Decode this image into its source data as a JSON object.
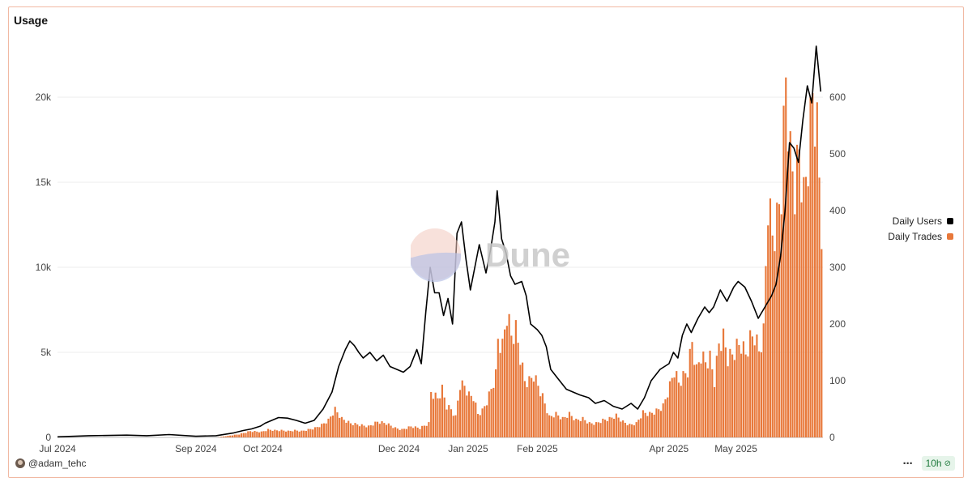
{
  "card": {
    "title": "Usage",
    "author": "@adam_tehc",
    "refresh_label": "10h",
    "more_icon": "more-dots-icon",
    "status_icon": "check-circle-icon"
  },
  "watermark": {
    "text": "Dune"
  },
  "legend": [
    {
      "label": "Daily Users",
      "color": "#000000"
    },
    {
      "label": "Daily Trades",
      "color": "#e8783a"
    }
  ],
  "chart_data": {
    "type": "bar+line",
    "x_ticks": [
      "Jul 2024",
      "Sep 2024",
      "Oct 2024",
      "Dec 2024",
      "Jan 2025",
      "Feb 2025",
      "Apr 2025",
      "May 2025"
    ],
    "x_tick_dates": [
      "2024-07-01",
      "2024-09-01",
      "2024-10-01",
      "2024-12-01",
      "2025-01-01",
      "2025-02-01",
      "2025-04-01",
      "2025-05-01"
    ],
    "x_range": [
      "2024-07-01",
      "2025-06-09"
    ],
    "y_left": {
      "ticks": [
        0,
        5000,
        10000,
        15000,
        20000
      ],
      "tick_labels": [
        "0",
        "5k",
        "10k",
        "15k",
        "20k"
      ],
      "range": [
        0,
        23000
      ],
      "series": "Daily Trades"
    },
    "y_right": {
      "ticks": [
        0,
        100,
        200,
        300,
        400,
        500,
        600
      ],
      "tick_labels": [
        "0",
        "100",
        "200",
        "300",
        "400",
        "500",
        "600"
      ],
      "range": [
        0,
        690
      ],
      "series": "Daily Users"
    },
    "grid": true,
    "legend_position": "right",
    "series": [
      {
        "name": "Daily Trades",
        "kind": "bar",
        "axis": "left",
        "color": "#e8783a",
        "points": [
          [
            "2024-07-01",
            0
          ],
          [
            "2024-08-01",
            0
          ],
          [
            "2024-09-01",
            0
          ],
          [
            "2024-09-10",
            0
          ],
          [
            "2024-09-15",
            100
          ],
          [
            "2024-09-20",
            200
          ],
          [
            "2024-09-25",
            400
          ],
          [
            "2024-09-30",
            350
          ],
          [
            "2024-10-03",
            500
          ],
          [
            "2024-10-06",
            450
          ],
          [
            "2024-10-09",
            450
          ],
          [
            "2024-10-12",
            400
          ],
          [
            "2024-10-15",
            450
          ],
          [
            "2024-10-18",
            400
          ],
          [
            "2024-10-21",
            500
          ],
          [
            "2024-10-24",
            600
          ],
          [
            "2024-10-27",
            800
          ],
          [
            "2024-10-30",
            1100
          ],
          [
            "2024-11-02",
            1800
          ],
          [
            "2024-11-05",
            1200
          ],
          [
            "2024-11-09",
            900
          ],
          [
            "2024-11-13",
            800
          ],
          [
            "2024-11-17",
            700
          ],
          [
            "2024-11-21",
            1000
          ],
          [
            "2024-11-25",
            900
          ],
          [
            "2024-11-29",
            600
          ],
          [
            "2024-12-02",
            500
          ],
          [
            "2024-12-06",
            700
          ],
          [
            "2024-12-10",
            600
          ],
          [
            "2024-12-14",
            900
          ],
          [
            "2024-12-15",
            2900
          ],
          [
            "2024-12-18",
            2500
          ],
          [
            "2024-12-20",
            3100
          ],
          [
            "2024-12-22",
            2000
          ],
          [
            "2024-12-24",
            1800
          ],
          [
            "2024-12-26",
            1300
          ],
          [
            "2024-12-28",
            3400
          ],
          [
            "2024-12-30",
            3300
          ],
          [
            "2025-01-01",
            2700
          ],
          [
            "2025-01-03",
            2600
          ],
          [
            "2025-01-05",
            1500
          ],
          [
            "2025-01-07",
            1700
          ],
          [
            "2025-01-09",
            2300
          ],
          [
            "2025-01-11",
            3100
          ],
          [
            "2025-01-13",
            4000
          ],
          [
            "2025-01-14",
            6300
          ],
          [
            "2025-01-16",
            5800
          ],
          [
            "2025-01-18",
            8000
          ],
          [
            "2025-01-20",
            6500
          ],
          [
            "2025-01-22",
            6900
          ],
          [
            "2025-01-24",
            5200
          ],
          [
            "2025-01-26",
            3600
          ],
          [
            "2025-01-28",
            3600
          ],
          [
            "2025-01-30",
            4000
          ],
          [
            "2025-02-01",
            3300
          ],
          [
            "2025-02-03",
            2600
          ],
          [
            "2025-02-06",
            1300
          ],
          [
            "2025-02-09",
            1500
          ],
          [
            "2025-02-12",
            1200
          ],
          [
            "2025-02-15",
            1500
          ],
          [
            "2025-02-18",
            1100
          ],
          [
            "2025-02-21",
            1200
          ],
          [
            "2025-02-24",
            900
          ],
          [
            "2025-02-27",
            900
          ],
          [
            "2025-03-02",
            1100
          ],
          [
            "2025-03-05",
            1200
          ],
          [
            "2025-03-08",
            1400
          ],
          [
            "2025-03-11",
            1000
          ],
          [
            "2025-03-14",
            800
          ],
          [
            "2025-03-17",
            900
          ],
          [
            "2025-03-20",
            1600
          ],
          [
            "2025-03-23",
            1500
          ],
          [
            "2025-03-26",
            1700
          ],
          [
            "2025-03-29",
            2000
          ],
          [
            "2025-04-01",
            3300
          ],
          [
            "2025-04-03",
            4300
          ],
          [
            "2025-04-05",
            3500
          ],
          [
            "2025-04-07",
            3900
          ],
          [
            "2025-04-09",
            4300
          ],
          [
            "2025-04-11",
            6100
          ],
          [
            "2025-04-13",
            4300
          ],
          [
            "2025-04-15",
            5300
          ],
          [
            "2025-04-17",
            4800
          ],
          [
            "2025-04-19",
            5100
          ],
          [
            "2025-04-21",
            3600
          ],
          [
            "2025-04-23",
            6000
          ],
          [
            "2025-04-25",
            6400
          ],
          [
            "2025-04-27",
            5100
          ],
          [
            "2025-04-29",
            5300
          ],
          [
            "2025-05-01",
            5800
          ],
          [
            "2025-05-03",
            6000
          ],
          [
            "2025-05-05",
            5300
          ],
          [
            "2025-05-07",
            6300
          ],
          [
            "2025-05-09",
            6600
          ],
          [
            "2025-05-11",
            5500
          ],
          [
            "2025-05-13",
            6700
          ],
          [
            "2025-05-15",
            15200
          ],
          [
            "2025-05-17",
            12900
          ],
          [
            "2025-05-19",
            13800
          ],
          [
            "2025-05-21",
            16000
          ],
          [
            "2025-05-23",
            23000
          ],
          [
            "2025-05-25",
            18000
          ],
          [
            "2025-05-27",
            16000
          ],
          [
            "2025-05-29",
            18400
          ],
          [
            "2025-05-31",
            15300
          ],
          [
            "2025-06-02",
            18000
          ],
          [
            "2025-06-04",
            22000
          ],
          [
            "2025-06-06",
            19700
          ],
          [
            "2025-06-08",
            13500
          ]
        ]
      },
      {
        "name": "Daily Users",
        "kind": "line",
        "axis": "right",
        "color": "#000000",
        "points": [
          [
            "2024-07-01",
            1
          ],
          [
            "2024-07-15",
            3
          ],
          [
            "2024-08-01",
            4
          ],
          [
            "2024-08-10",
            3
          ],
          [
            "2024-08-20",
            5
          ],
          [
            "2024-09-01",
            2
          ],
          [
            "2024-09-10",
            3
          ],
          [
            "2024-09-18",
            8
          ],
          [
            "2024-09-22",
            12
          ],
          [
            "2024-09-26",
            15
          ],
          [
            "2024-09-30",
            20
          ],
          [
            "2024-10-02",
            25
          ],
          [
            "2024-10-05",
            30
          ],
          [
            "2024-10-08",
            35
          ],
          [
            "2024-10-12",
            34
          ],
          [
            "2024-10-16",
            30
          ],
          [
            "2024-10-20",
            25
          ],
          [
            "2024-10-24",
            30
          ],
          [
            "2024-10-28",
            50
          ],
          [
            "2024-11-01",
            80
          ],
          [
            "2024-11-04",
            125
          ],
          [
            "2024-11-07",
            155
          ],
          [
            "2024-11-09",
            170
          ],
          [
            "2024-11-11",
            162
          ],
          [
            "2024-11-13",
            150
          ],
          [
            "2024-11-15",
            140
          ],
          [
            "2024-11-18",
            150
          ],
          [
            "2024-11-21",
            135
          ],
          [
            "2024-11-24",
            145
          ],
          [
            "2024-11-27",
            125
          ],
          [
            "2024-11-30",
            120
          ],
          [
            "2024-12-03",
            115
          ],
          [
            "2024-12-06",
            125
          ],
          [
            "2024-12-09",
            155
          ],
          [
            "2024-12-11",
            130
          ],
          [
            "2024-12-13",
            220
          ],
          [
            "2024-12-15",
            300
          ],
          [
            "2024-12-17",
            255
          ],
          [
            "2024-12-19",
            255
          ],
          [
            "2024-12-21",
            215
          ],
          [
            "2024-12-23",
            245
          ],
          [
            "2024-12-25",
            200
          ],
          [
            "2024-12-27",
            360
          ],
          [
            "2024-12-29",
            380
          ],
          [
            "2024-12-31",
            315
          ],
          [
            "2025-01-02",
            260
          ],
          [
            "2025-01-04",
            300
          ],
          [
            "2025-01-06",
            340
          ],
          [
            "2025-01-09",
            290
          ],
          [
            "2025-01-11",
            330
          ],
          [
            "2025-01-13",
            380
          ],
          [
            "2025-01-14",
            435
          ],
          [
            "2025-01-16",
            350
          ],
          [
            "2025-01-18",
            325
          ],
          [
            "2025-01-20",
            285
          ],
          [
            "2025-01-22",
            270
          ],
          [
            "2025-01-25",
            275
          ],
          [
            "2025-01-27",
            250
          ],
          [
            "2025-01-29",
            200
          ],
          [
            "2025-02-01",
            190
          ],
          [
            "2025-02-03",
            180
          ],
          [
            "2025-02-05",
            160
          ],
          [
            "2025-02-07",
            120
          ],
          [
            "2025-02-10",
            105
          ],
          [
            "2025-02-14",
            85
          ],
          [
            "2025-02-17",
            80
          ],
          [
            "2025-02-20",
            75
          ],
          [
            "2025-02-24",
            70
          ],
          [
            "2025-02-27",
            60
          ],
          [
            "2025-03-03",
            65
          ],
          [
            "2025-03-07",
            55
          ],
          [
            "2025-03-11",
            50
          ],
          [
            "2025-03-15",
            60
          ],
          [
            "2025-03-18",
            50
          ],
          [
            "2025-03-21",
            70
          ],
          [
            "2025-03-24",
            100
          ],
          [
            "2025-03-28",
            120
          ],
          [
            "2025-04-01",
            130
          ],
          [
            "2025-04-03",
            150
          ],
          [
            "2025-04-05",
            140
          ],
          [
            "2025-04-07",
            180
          ],
          [
            "2025-04-09",
            200
          ],
          [
            "2025-04-11",
            185
          ],
          [
            "2025-04-14",
            210
          ],
          [
            "2025-04-17",
            230
          ],
          [
            "2025-04-19",
            220
          ],
          [
            "2025-04-21",
            230
          ],
          [
            "2025-04-24",
            260
          ],
          [
            "2025-04-27",
            240
          ],
          [
            "2025-04-30",
            265
          ],
          [
            "2025-05-02",
            275
          ],
          [
            "2025-05-05",
            265
          ],
          [
            "2025-05-08",
            240
          ],
          [
            "2025-05-11",
            210
          ],
          [
            "2025-05-14",
            230
          ],
          [
            "2025-05-17",
            250
          ],
          [
            "2025-05-19",
            270
          ],
          [
            "2025-05-21",
            320
          ],
          [
            "2025-05-23",
            400
          ],
          [
            "2025-05-25",
            520
          ],
          [
            "2025-05-27",
            510
          ],
          [
            "2025-05-29",
            485
          ],
          [
            "2025-05-31",
            560
          ],
          [
            "2025-06-02",
            620
          ],
          [
            "2025-06-04",
            590
          ],
          [
            "2025-06-06",
            690
          ],
          [
            "2025-06-08",
            610
          ]
        ]
      }
    ]
  }
}
